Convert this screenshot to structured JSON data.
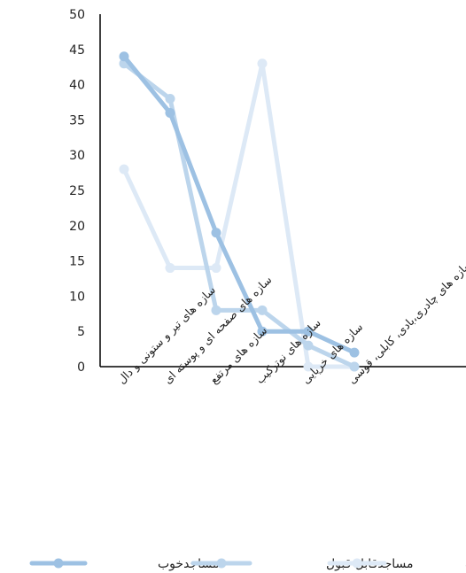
{
  "chart_data": {
    "type": "line",
    "categories": [
      "سازه های تیر و ستونی و دال",
      "سازه های صفحه ای و پوسته ای",
      "سازه های مرتفع",
      "سازه های نوترکیب",
      "سازه های خرپایی",
      "سازه های چادری،بادی، کابلی، قوسی"
    ],
    "series": [
      {
        "name": "مساجدخوب",
        "values": [
          44,
          36,
          19,
          5,
          5,
          2
        ],
        "color": "#9dc1e3"
      },
      {
        "name": "مساجدقابل قبول",
        "values": [
          43,
          38,
          8,
          8,
          3,
          0
        ],
        "color": "#bcd5ec"
      },
      {
        "name": "مساجدضعیف",
        "values": [
          28,
          14,
          14,
          43,
          0,
          0
        ],
        "color": "#dde9f6"
      }
    ],
    "ylim": [
      0,
      50
    ],
    "yticks": [
      0,
      5,
      10,
      15,
      20,
      25,
      30,
      35,
      40,
      45,
      50
    ],
    "grid": false,
    "legend": "bottom"
  }
}
